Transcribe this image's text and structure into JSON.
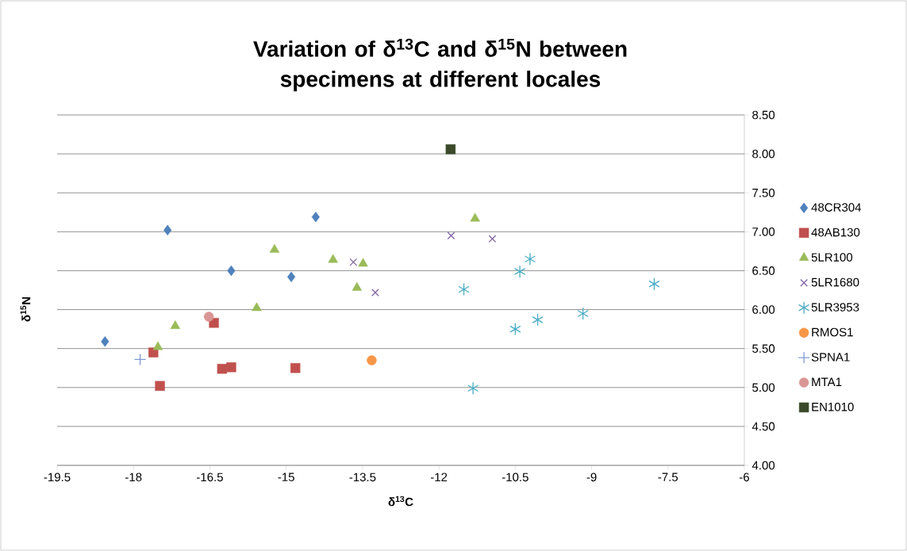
{
  "chart_data": {
    "type": "scatter",
    "title": "Variation of δ$^{13}$C and δ$^{15}$N between specimens at different locales",
    "xlabel": "δ$^{13}$C",
    "ylabel": "δ$^{15}$N",
    "xlim": [
      -19.5,
      -6
    ],
    "xticks": [
      -19.5,
      -18,
      -16.5,
      -15,
      -13.5,
      -12,
      -10.5,
      -9,
      -7.5,
      -6
    ],
    "ylim": [
      4,
      8.5
    ],
    "yticks": [
      {
        "value": 4,
        "label": "4.00"
      },
      {
        "value": 4.5,
        "label": "4.50"
      },
      {
        "value": 5,
        "label": "5.00"
      },
      {
        "value": 5.5,
        "label": "5.50"
      },
      {
        "value": 6,
        "label": "6.00"
      },
      {
        "value": 6.5,
        "label": "6.50"
      },
      {
        "value": 7,
        "label": "7.00"
      },
      {
        "value": 7.5,
        "label": "7.50"
      },
      {
        "value": 8,
        "label": "8.00"
      },
      {
        "value": 8.5,
        "label": "8.50"
      }
    ],
    "grid": "y",
    "legend": "right",
    "series": [
      {
        "name": "48CR304",
        "color": "#4f81bd",
        "marker": "diamond",
        "x": [
          -18.56,
          -17.33,
          -16.08,
          -14.9,
          -14.42
        ],
        "values": [
          5.59,
          7.02,
          6.5,
          6.42,
          7.19
        ]
      },
      {
        "name": "48AB130",
        "color": "#c0504d",
        "marker": "square",
        "x": [
          -17.61,
          -17.48,
          -16.42,
          -16.26,
          -16.08,
          -14.82
        ],
        "values": [
          5.45,
          5.02,
          5.83,
          5.24,
          5.26,
          5.25
        ]
      },
      {
        "name": "5LR100",
        "color": "#9bbb59",
        "marker": "triangle",
        "x": [
          -17.52,
          -17.18,
          -15.58,
          -15.23,
          -14.08,
          -13.61,
          -13.49,
          -11.29
        ],
        "values": [
          5.52,
          5.79,
          6.02,
          6.77,
          6.64,
          6.28,
          6.59,
          7.17
        ]
      },
      {
        "name": "5LR1680",
        "color": "#8064a2",
        "marker": "cross",
        "x": [
          -13.68,
          -13.25,
          -11.76,
          -10.95
        ],
        "values": [
          6.61,
          6.22,
          6.95,
          6.91
        ]
      },
      {
        "name": "5LR3953",
        "color": "#4bacc6",
        "x": [
          -11.51,
          -11.33,
          -10.5,
          -10.41,
          -10.21,
          -10.06,
          -9.17,
          -7.77
        ],
        "values": [
          6.26,
          4.99,
          5.75,
          6.49,
          6.65,
          5.87,
          5.95,
          6.33
        ]
      },
      {
        "name": "RMOS1",
        "color": "#f79646",
        "marker": "circle",
        "x": [
          -13.32
        ],
        "values": [
          5.35
        ]
      },
      {
        "name": "SPNA1",
        "color": "#7f9bd4",
        "marker": "plus",
        "x": [
          -17.87
        ],
        "values": [
          5.36
        ]
      },
      {
        "name": "MTA1",
        "color": "#d99694",
        "marker": "circle",
        "x": [
          -16.52
        ],
        "values": [
          5.91
        ]
      },
      {
        "name": "EN1010",
        "color": "#3a4a2a",
        "marker": "square",
        "x": [
          -11.77
        ],
        "values": [
          8.06
        ]
      }
    ]
  }
}
